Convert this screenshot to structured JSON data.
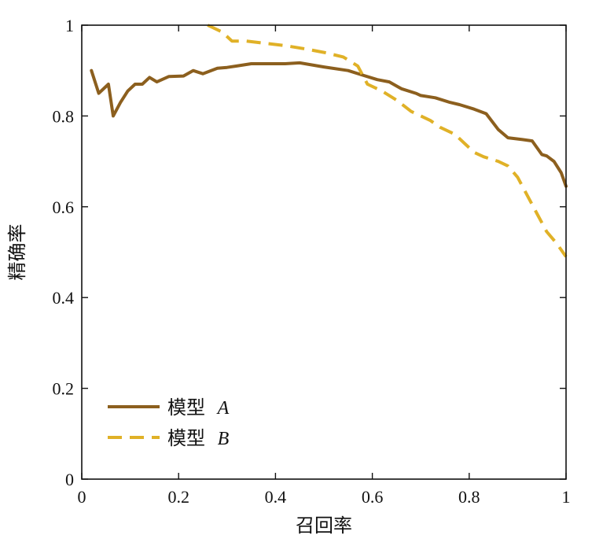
{
  "chart_data": {
    "type": "line",
    "title": "",
    "xlabel": "召回率",
    "ylabel": "精确率",
    "xlim": [
      0,
      1
    ],
    "ylim": [
      0,
      1
    ],
    "xticks": [
      0,
      0.2,
      0.4,
      0.6,
      0.8,
      1
    ],
    "yticks": [
      0,
      0.2,
      0.4,
      0.6,
      0.8,
      1
    ],
    "xtick_labels": [
      "0",
      "0.2",
      "0.4",
      "0.6",
      "0.8",
      "1"
    ],
    "ytick_labels": [
      "0",
      "0.2",
      "0.4",
      "0.6",
      "0.8",
      "1"
    ],
    "grid": false,
    "legend": {
      "placement": "bottom-left"
    },
    "series": [
      {
        "legend_prefix": "模型",
        "legend_var": "A",
        "color": "#8C5F1E",
        "style": "solid",
        "x": [
          0.02,
          0.035,
          0.055,
          0.065,
          0.08,
          0.095,
          0.11,
          0.125,
          0.14,
          0.155,
          0.18,
          0.21,
          0.23,
          0.25,
          0.28,
          0.3,
          0.32,
          0.35,
          0.38,
          0.42,
          0.45,
          0.5,
          0.55,
          0.58,
          0.61,
          0.635,
          0.66,
          0.69,
          0.7,
          0.73,
          0.76,
          0.78,
          0.81,
          0.835,
          0.86,
          0.88,
          0.91,
          0.93,
          0.95,
          0.96,
          0.975,
          0.99,
          1.0
        ],
        "y": [
          0.9,
          0.85,
          0.87,
          0.8,
          0.83,
          0.855,
          0.87,
          0.87,
          0.885,
          0.875,
          0.887,
          0.888,
          0.9,
          0.893,
          0.905,
          0.907,
          0.91,
          0.915,
          0.915,
          0.915,
          0.917,
          0.908,
          0.9,
          0.89,
          0.88,
          0.875,
          0.86,
          0.85,
          0.845,
          0.84,
          0.83,
          0.825,
          0.815,
          0.805,
          0.77,
          0.752,
          0.748,
          0.745,
          0.715,
          0.712,
          0.7,
          0.675,
          0.645
        ]
      },
      {
        "legend_prefix": "模型",
        "legend_var": "B",
        "color": "#E0B127",
        "style": "dashed",
        "x": [
          0.26,
          0.29,
          0.31,
          0.34,
          0.38,
          0.42,
          0.46,
          0.5,
          0.54,
          0.57,
          0.59,
          0.62,
          0.65,
          0.68,
          0.7,
          0.72,
          0.74,
          0.77,
          0.79,
          0.81,
          0.83,
          0.86,
          0.88,
          0.9,
          0.92,
          0.94,
          0.96,
          0.98,
          1.0
        ],
        "y": [
          1.0,
          0.985,
          0.965,
          0.965,
          0.96,
          0.955,
          0.948,
          0.94,
          0.93,
          0.91,
          0.87,
          0.855,
          0.835,
          0.81,
          0.8,
          0.79,
          0.775,
          0.76,
          0.74,
          0.72,
          0.71,
          0.7,
          0.69,
          0.665,
          0.625,
          0.585,
          0.545,
          0.52,
          0.49
        ]
      }
    ]
  }
}
